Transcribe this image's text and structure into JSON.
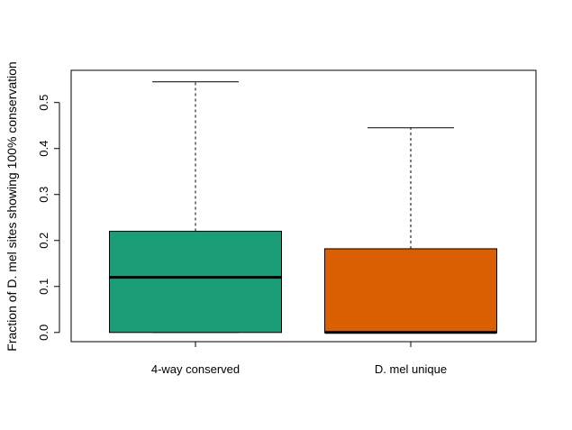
{
  "chart_data": {
    "type": "boxplot",
    "title": "",
    "xlabel": "",
    "ylabel": "Fraction of D. mel sites showing 100% conservation",
    "ylim": [
      -0.02,
      0.57
    ],
    "yticks": [
      "0.0",
      "0.1",
      "0.2",
      "0.3",
      "0.4",
      "0.5"
    ],
    "ytick_values": [
      0.0,
      0.1,
      0.2,
      0.3,
      0.4,
      0.5
    ],
    "grid": false,
    "categories": [
      "4-way conserved",
      "D. mel unique"
    ],
    "boxes": [
      {
        "label": "4-way conserved",
        "min": 0.0,
        "q1": 0.0,
        "median": 0.12,
        "q3": 0.22,
        "max": 0.545,
        "color": "#1b9e77"
      },
      {
        "label": "D. mel unique",
        "min": 0.0,
        "q1": 0.0,
        "median": 0.0,
        "q3": 0.182,
        "max": 0.445,
        "color": "#d95f02"
      }
    ]
  }
}
